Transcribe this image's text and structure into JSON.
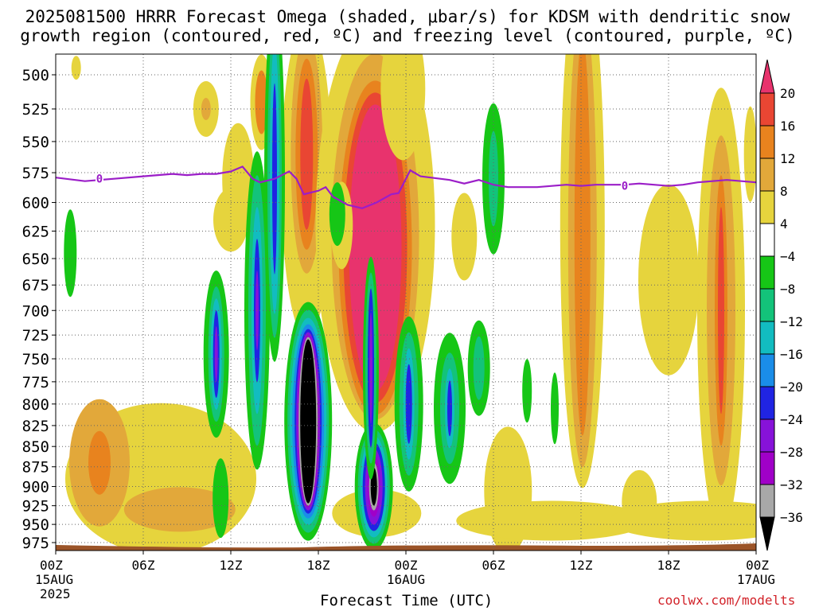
{
  "title_line1": "2025081500 HRRR Forecast Omega (shaded, μbar/s) for KDSM with dendritic snow",
  "title_line2": "growth region (contoured, red, ºC) and freezing level (contoured, purple, ºC)",
  "credit": "coolwx.com/modelts",
  "chart_data": {
    "type": "heatmap",
    "title": "2025081500 HRRR Forecast Omega (shaded, μbar/s) for KDSM with dendritic snow growth region (contoured, red, ºC) and freezing level (contoured, purple, ºC)",
    "xlabel": "Forecast Time (UTC)",
    "ylabel": "",
    "x_ticks": [
      {
        "hour": 0,
        "label": "00Z",
        "sub": "15AUG",
        "sub2": "2025"
      },
      {
        "hour": 6,
        "label": "06Z"
      },
      {
        "hour": 12,
        "label": "12Z"
      },
      {
        "hour": 18,
        "label": "18Z"
      },
      {
        "hour": 24,
        "label": "00Z",
        "sub": "16AUG"
      },
      {
        "hour": 30,
        "label": "06Z"
      },
      {
        "hour": 36,
        "label": "12Z"
      },
      {
        "hour": 42,
        "label": "18Z"
      },
      {
        "hour": 48,
        "label": "00Z",
        "sub": "17AUG"
      }
    ],
    "xlim": [
      0,
      48
    ],
    "y_ticks": [
      500,
      525,
      550,
      575,
      600,
      625,
      650,
      675,
      700,
      725,
      750,
      775,
      800,
      825,
      850,
      875,
      900,
      925,
      950,
      975
    ],
    "ylim_hPa": [
      985,
      485
    ],
    "y_scale": "pressure (log-p, decreasing upward)",
    "grid": true,
    "colorbar": {
      "tick_labels": [
        "20",
        "16",
        "12",
        "8",
        "4",
        "−4",
        "−8",
        "−12",
        "−16",
        "−20",
        "−24",
        "−28",
        "−32",
        "−36"
      ],
      "colors": [
        "#e8336d",
        "#e94633",
        "#e8831e",
        "#e2a83a",
        "#e6d43d",
        "#ffffff",
        "#16c616",
        "#13c37a",
        "#12bcc0",
        "#1a8de8",
        "#2024e3",
        "#8712d9",
        "#a000c8",
        "#a8a8a8",
        "#000000"
      ]
    },
    "freezing_level": {
      "label": "0",
      "color": "#9b1ec8",
      "points": [
        [
          0,
          579
        ],
        [
          2,
          582
        ],
        [
          4,
          580
        ],
        [
          6,
          578
        ],
        [
          7,
          577
        ],
        [
          8,
          576
        ],
        [
          9,
          577
        ],
        [
          10,
          576
        ],
        [
          11,
          576
        ],
        [
          12,
          574
        ],
        [
          12.8,
          570
        ],
        [
          13.5,
          580
        ],
        [
          14,
          583
        ],
        [
          15,
          580
        ],
        [
          16,
          574
        ],
        [
          16.5,
          580
        ],
        [
          17,
          593
        ],
        [
          18,
          590
        ],
        [
          18.5,
          587
        ],
        [
          19,
          595
        ],
        [
          20,
          602
        ],
        [
          21,
          605
        ],
        [
          22,
          600
        ],
        [
          23,
          593
        ],
        [
          23.5,
          592
        ],
        [
          24,
          580
        ],
        [
          24.3,
          573
        ],
        [
          25,
          578
        ],
        [
          27,
          581
        ],
        [
          28,
          584
        ],
        [
          29,
          581
        ],
        [
          30,
          585
        ],
        [
          31,
          587
        ],
        [
          33,
          587
        ],
        [
          35,
          585
        ],
        [
          36,
          586
        ],
        [
          37,
          585
        ],
        [
          39,
          585
        ],
        [
          40,
          584
        ],
        [
          41,
          585
        ],
        [
          42,
          586
        ],
        [
          43,
          585
        ],
        [
          44,
          583
        ],
        [
          45,
          582
        ],
        [
          46,
          581
        ],
        [
          47,
          582
        ],
        [
          48,
          583
        ]
      ],
      "label_positions": [
        [
          3,
          580
        ],
        [
          39,
          586
        ]
      ]
    },
    "omega_regions": [
      {
        "sign": "negative",
        "center_hour": 17.3,
        "center_hPa": 840,
        "min": -36
      },
      {
        "sign": "positive",
        "center_hour": 22.3,
        "center_hPa": 630,
        "max": 20
      },
      {
        "sign": "negative",
        "center_hour": 21.7,
        "center_hPa": 905,
        "min": -36
      },
      {
        "sign": "positive",
        "center_hour": 17.2,
        "center_hPa": 540,
        "max": 20
      },
      {
        "sign": "positive",
        "center_hour": 45.6,
        "center_hPa": 760,
        "max": 12
      },
      {
        "sign": "positive",
        "center_hour": 36.1,
        "center_hPa": 700,
        "max": 12
      }
    ],
    "surface": {
      "color": "#9b5428"
    }
  }
}
